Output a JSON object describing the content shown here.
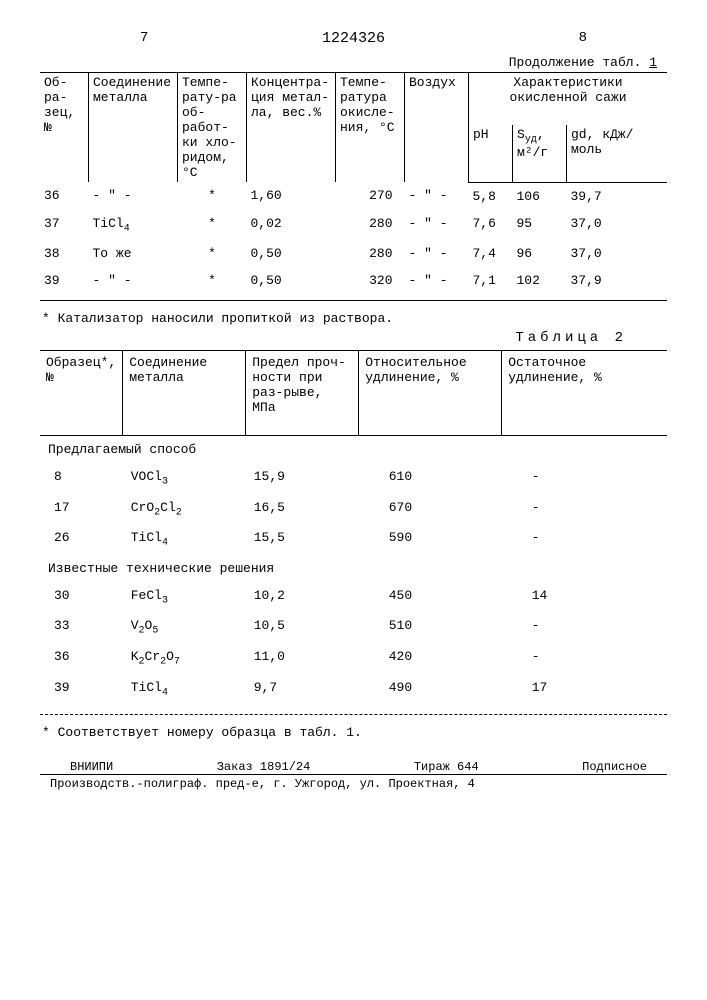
{
  "header": {
    "page_left": "7",
    "doc_number": "1224326",
    "page_right": "8",
    "continuation_prefix": "Продолжение табл.",
    "continuation_num": "1"
  },
  "table1": {
    "columns": {
      "c1": "Об-ра-зец, №",
      "c2": "Соединение металла",
      "c3": "Темпе-рату-ра об-работ-ки хло-ридом, °С",
      "c4": "Концентра-ция метал-ла, вес.%",
      "c5": "Темпе-ратура окисле-ния, °С",
      "c6": "Воздух",
      "group": "Характеристики окисленной сажи",
      "c7": "pH",
      "c8_html": "S<sub>уд</sub>,<br>м²/г",
      "c9": "gd, кДж/моль"
    },
    "rows": [
      {
        "n": "36",
        "compound_html": "- \" -",
        "t_cl": "*",
        "conc": "1,60",
        "t_ox": "270",
        "air": "- \" -",
        "ph": "5,8",
        "s": "106",
        "gd": "39,7"
      },
      {
        "n": "37",
        "compound_html": "TiCl<sub>4</sub>",
        "t_cl": "*",
        "conc": "0,02",
        "t_ox": "280",
        "air": "- \" -",
        "ph": "7,6",
        "s": "95",
        "gd": "37,0"
      },
      {
        "n": "38",
        "compound_html": "То же",
        "t_cl": "*",
        "conc": "0,50",
        "t_ox": "280",
        "air": "- \" -",
        "ph": "7,4",
        "s": "96",
        "gd": "37,0"
      },
      {
        "n": "39",
        "compound_html": "- \" -",
        "t_cl": "*",
        "conc": "0,50",
        "t_ox": "320",
        "air": "- \" -",
        "ph": "7,1",
        "s": "102",
        "gd": "37,9"
      }
    ],
    "footnote": "* Катализатор наносили пропиткой из раствора."
  },
  "table2": {
    "label": "Таблица 2",
    "columns": {
      "c1": "Образец*, №",
      "c2": "Соединение металла",
      "c3": "Предел проч-ности при раз-рыве, МПа",
      "c4": "Относительное удлинение, %",
      "c5": "Остаточное удлинение, %"
    },
    "section_a": "Предлагаемый способ",
    "rows_a": [
      {
        "n": "8",
        "compound_html": "VOCl<sub>3</sub>",
        "strength": "15,9",
        "elong": "610",
        "resid": "-"
      },
      {
        "n": "17",
        "compound_html": "CrO<sub>2</sub>Cl<sub>2</sub>",
        "strength": "16,5",
        "elong": "670",
        "resid": "-"
      },
      {
        "n": "26",
        "compound_html": "TiCl<sub>4</sub>",
        "strength": "15,5",
        "elong": "590",
        "resid": "-"
      }
    ],
    "section_b": "Известные технические решения",
    "rows_b": [
      {
        "n": "30",
        "compound_html": "FeCl<sub>3</sub>",
        "strength": "10,2",
        "elong": "450",
        "resid": "14"
      },
      {
        "n": "33",
        "compound_html": "V<sub>2</sub>O<sub>5</sub>",
        "strength": "10,5",
        "elong": "510",
        "resid": "-"
      },
      {
        "n": "36",
        "compound_html": "K<sub>2</sub>Cr<sub>2</sub>O<sub>7</sub>",
        "strength": "11,0",
        "elong": "420",
        "resid": "-"
      },
      {
        "n": "39",
        "compound_html": "TiCl<sub>4</sub>",
        "strength": "9,7",
        "elong": "490",
        "resid": "17"
      }
    ],
    "footnote": "* Соответствует номеру образца в табл. 1."
  },
  "footer": {
    "org": "ВНИИПИ",
    "order": "Заказ 1891/24",
    "tirazh": "Тираж 644",
    "sub": "Подписное",
    "address": "Производств.-полиграф. пред-е, г. Ужгород, ул. Проектная, 4"
  }
}
